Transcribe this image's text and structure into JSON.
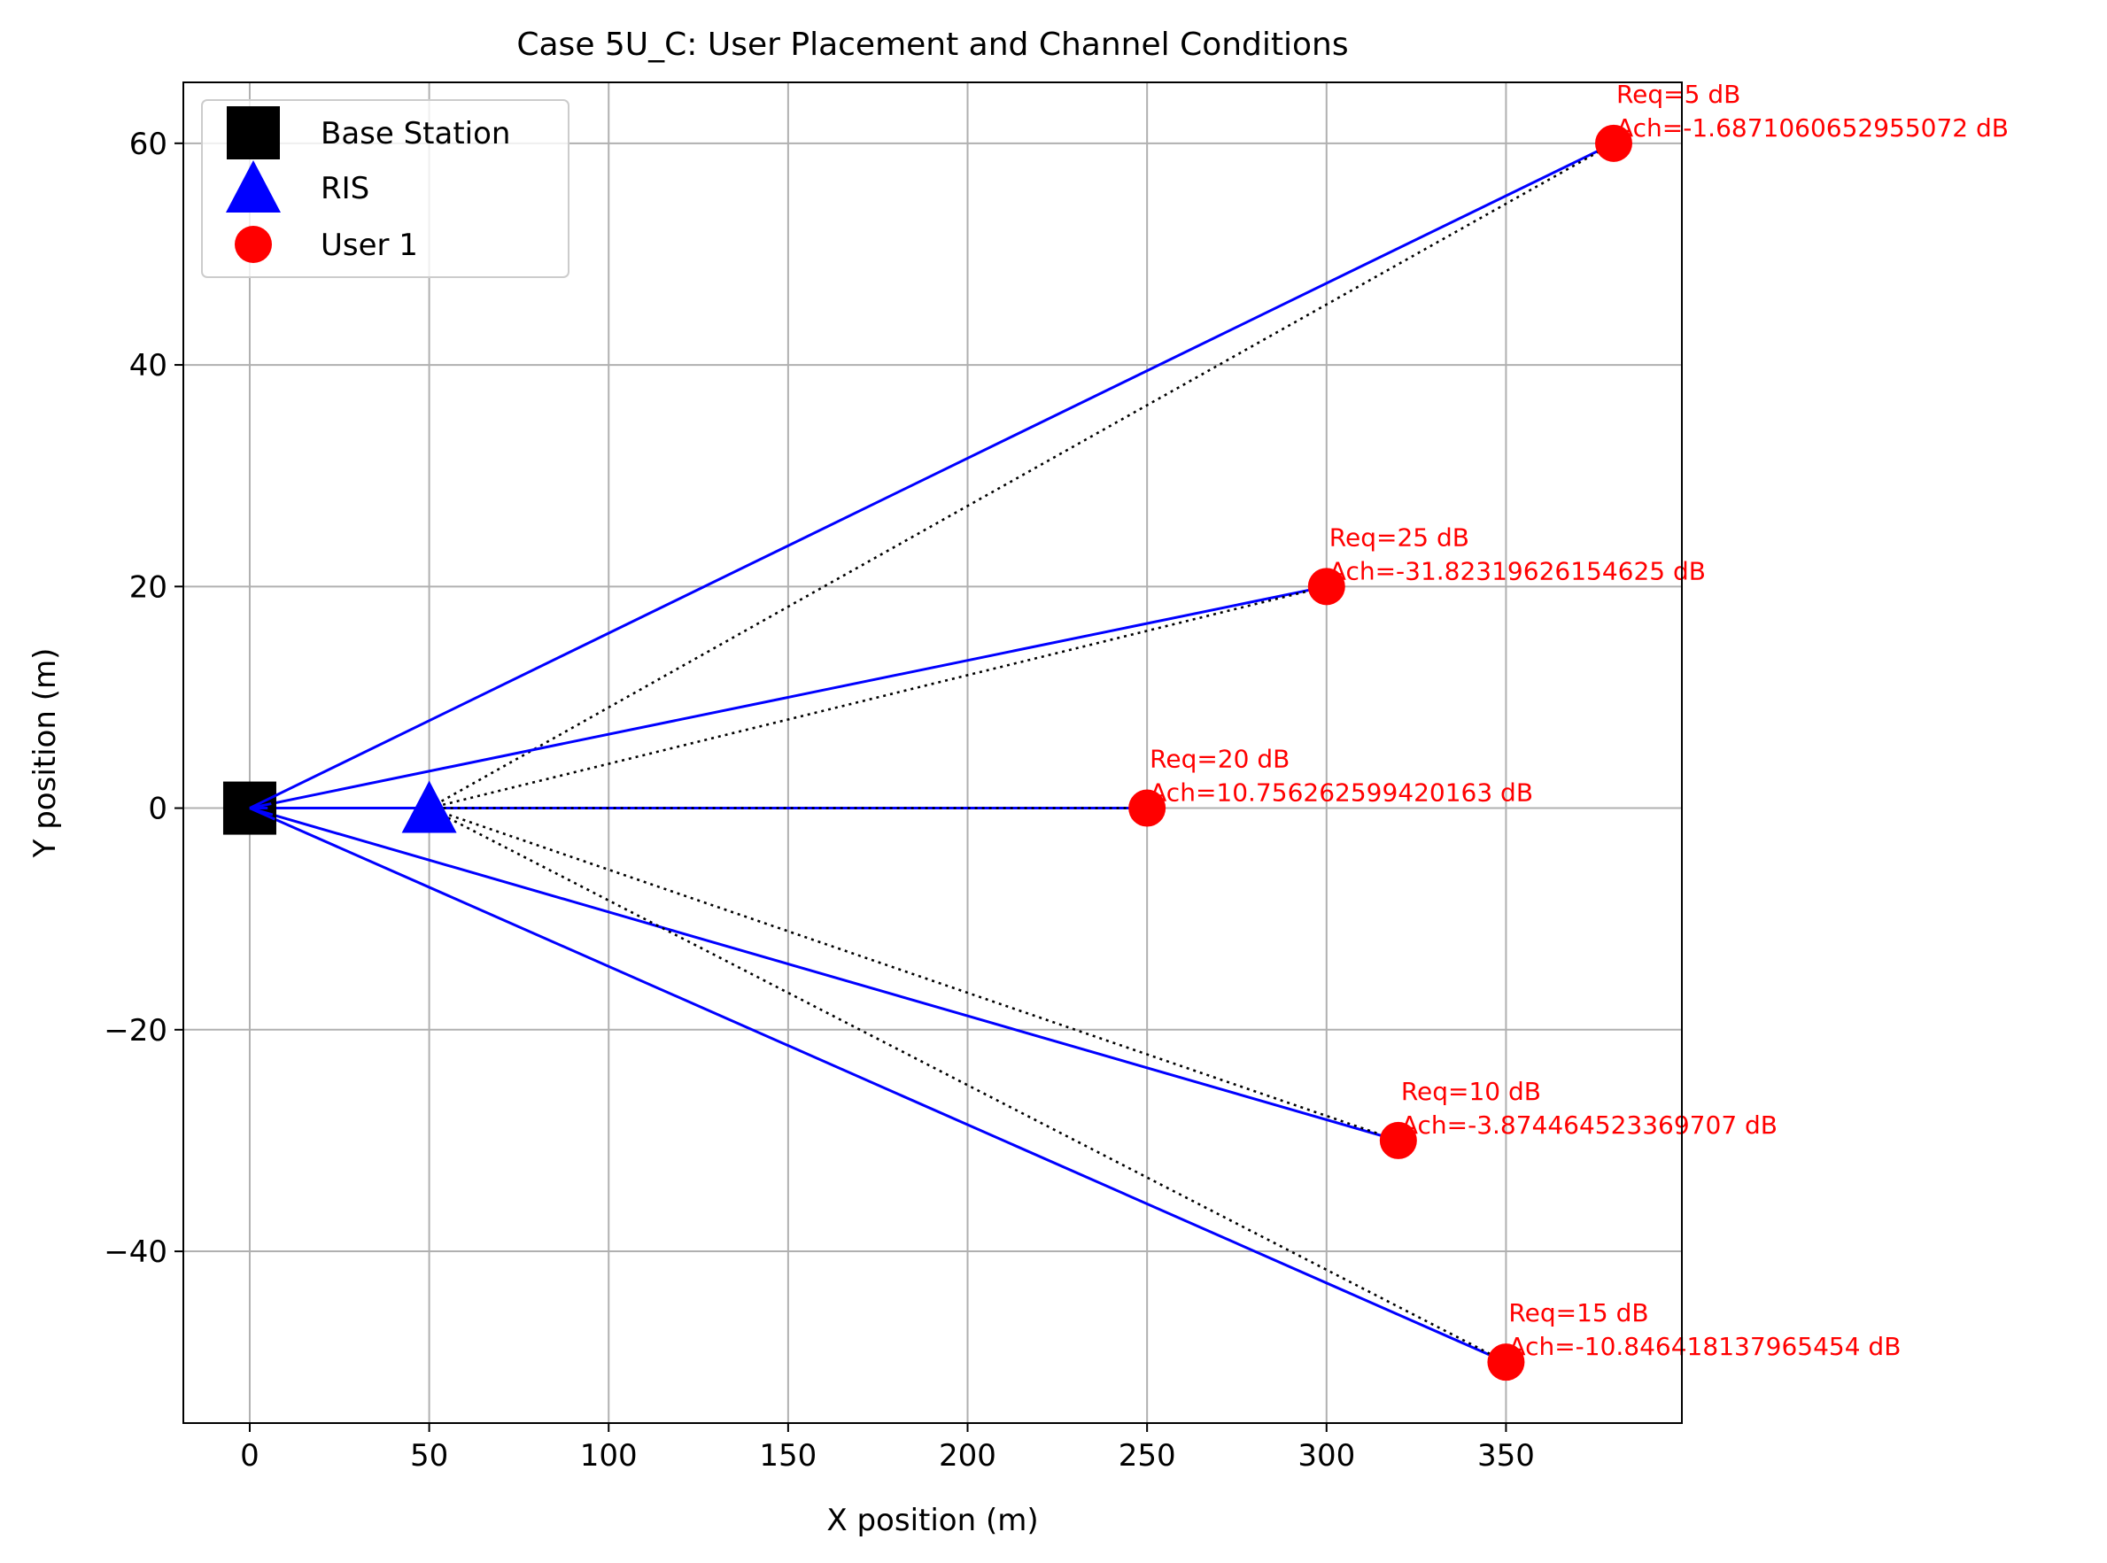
{
  "chart_data": {
    "type": "scatter",
    "title": "Case 5U_C: User Placement and Channel Conditions",
    "xlabel": "X position (m)",
    "ylabel": "Y position (m)",
    "xlim": [
      -18.5,
      399
    ],
    "ylim": [
      -55.5,
      65.5
    ],
    "xticks": [
      0,
      50,
      100,
      150,
      200,
      250,
      300,
      350
    ],
    "yticks": [
      -40,
      -20,
      0,
      20,
      40,
      60
    ],
    "xtick_labels": [
      "0",
      "50",
      "100",
      "150",
      "200",
      "250",
      "300",
      "350"
    ],
    "ytick_labels": [
      "−40",
      "−20",
      "0",
      "20",
      "40",
      "60"
    ],
    "grid": true,
    "legend_position": "upper-left",
    "legend": [
      {
        "label": "Base Station",
        "marker": "square",
        "color": "#000000"
      },
      {
        "label": "RIS",
        "marker": "triangle",
        "color": "#0000ff"
      },
      {
        "label": "User 1",
        "marker": "circle",
        "color": "#ff0000"
      }
    ],
    "base_station": {
      "x": 0,
      "y": 0,
      "color": "#000000"
    },
    "ris": {
      "x": 50,
      "y": 0,
      "color": "#0000ff"
    },
    "users": [
      {
        "x": 380,
        "y": 60,
        "req": "Req=5 dB",
        "ach": "Ach=-1.6871060652955072 dB"
      },
      {
        "x": 300,
        "y": 20,
        "req": "Req=25 dB",
        "ach": "Ach=-31.82319626154625 dB"
      },
      {
        "x": 250,
        "y": 0,
        "req": "Req=20 dB",
        "ach": "Ach=10.756262599420163 dB"
      },
      {
        "x": 320,
        "y": -30,
        "req": "Req=10 dB",
        "ach": "Ach=-3.874464523369707 dB"
      },
      {
        "x": 350,
        "y": -50,
        "req": "Req=15 dB",
        "ach": "Ach=-10.846418137965454 dB"
      }
    ],
    "colors": {
      "user": "#ff0000",
      "direct_link": "#0000ff",
      "ris_link": "#000000",
      "annotation": "#ff0000",
      "grid": "#b0b0b0"
    }
  }
}
